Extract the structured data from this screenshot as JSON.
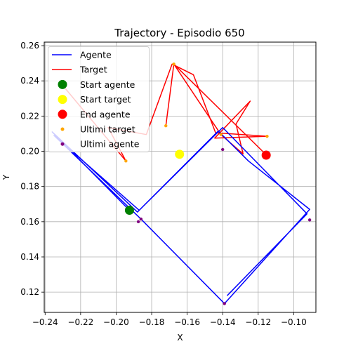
{
  "chart_data": {
    "type": "line",
    "title": "Trajectory - Episodio 650",
    "xlabel": "X",
    "ylabel": "Y",
    "xlim": [
      -0.2405,
      -0.0875
    ],
    "ylim": [
      0.1085,
      0.262
    ],
    "xticks": [
      -0.24,
      -0.22,
      -0.2,
      -0.18,
      -0.16,
      -0.14,
      -0.12,
      -0.1
    ],
    "xtick_labels": [
      "−0.24",
      "−0.22",
      "−0.20",
      "−0.18",
      "−0.16",
      "−0.14",
      "−0.12",
      "−0.10"
    ],
    "yticks": [
      0.12,
      0.14,
      0.16,
      0.18,
      0.2,
      0.22,
      0.24,
      0.26
    ],
    "ytick_labels": [
      "0.12",
      "0.14",
      "0.16",
      "0.18",
      "0.20",
      "0.22",
      "0.24",
      "0.26"
    ],
    "grid": true,
    "legend_position": "top-left",
    "colors": {
      "agent": "#0000ff",
      "target": "#ff0000",
      "start_agent": "#008000",
      "start_target": "#ffff00",
      "end_agent": "#ff0000",
      "last_target": "#ffa500",
      "last_agent": "#800080"
    },
    "series": [
      {
        "name": "Agente",
        "kind": "line",
        "x": [
          -0.193,
          -0.236,
          -0.188,
          -0.1425,
          -0.1255,
          -0.091,
          -0.139,
          -0.186,
          -0.235,
          -0.187,
          -0.14,
          -0.0925,
          -0.1375
        ],
        "y": [
          0.167,
          0.211,
          0.1655,
          0.2115,
          0.1945,
          0.167,
          0.1135,
          0.1615,
          0.209,
          0.1665,
          0.2135,
          0.1645,
          0.118
        ]
      },
      {
        "name": "Target",
        "kind": "line",
        "x": [
          -0.2285,
          -0.1945,
          -0.2045,
          -0.183,
          -0.1685,
          -0.1565,
          -0.144,
          -0.115,
          -0.1445,
          -0.1245,
          -0.1325,
          -0.1285,
          -0.141,
          -0.1675,
          -0.172,
          -0.1675,
          -0.1155
        ],
        "y": [
          0.2355,
          0.1945,
          0.2135,
          0.2095,
          0.2495,
          0.2435,
          0.2105,
          0.2085,
          0.2075,
          0.2285,
          0.2155,
          0.1985,
          0.2095,
          0.2495,
          0.2145,
          0.2495,
          0.198
        ]
      },
      {
        "name": "Start agente",
        "kind": "marker",
        "x": [
          -0.1925
        ],
        "y": [
          0.1665
        ]
      },
      {
        "name": "Start target",
        "kind": "marker",
        "x": [
          -0.1643
        ],
        "y": [
          0.1983
        ]
      },
      {
        "name": "End agente",
        "kind": "marker",
        "x": [
          -0.1155
        ],
        "y": [
          0.1978
        ]
      },
      {
        "name": "Ultimi target",
        "kind": "points",
        "x": [
          -0.1945,
          -0.172,
          -0.1675,
          -0.1155,
          -0.141,
          -0.115
        ],
        "y": [
          0.1945,
          0.2145,
          0.2495,
          0.198,
          0.2095,
          0.2085
        ]
      },
      {
        "name": "Ultimi agente",
        "kind": "points",
        "x": [
          -0.14,
          -0.139,
          -0.091,
          -0.186,
          -0.1875
        ],
        "y": [
          0.201,
          0.1135,
          0.161,
          0.1615,
          0.16
        ]
      }
    ]
  }
}
